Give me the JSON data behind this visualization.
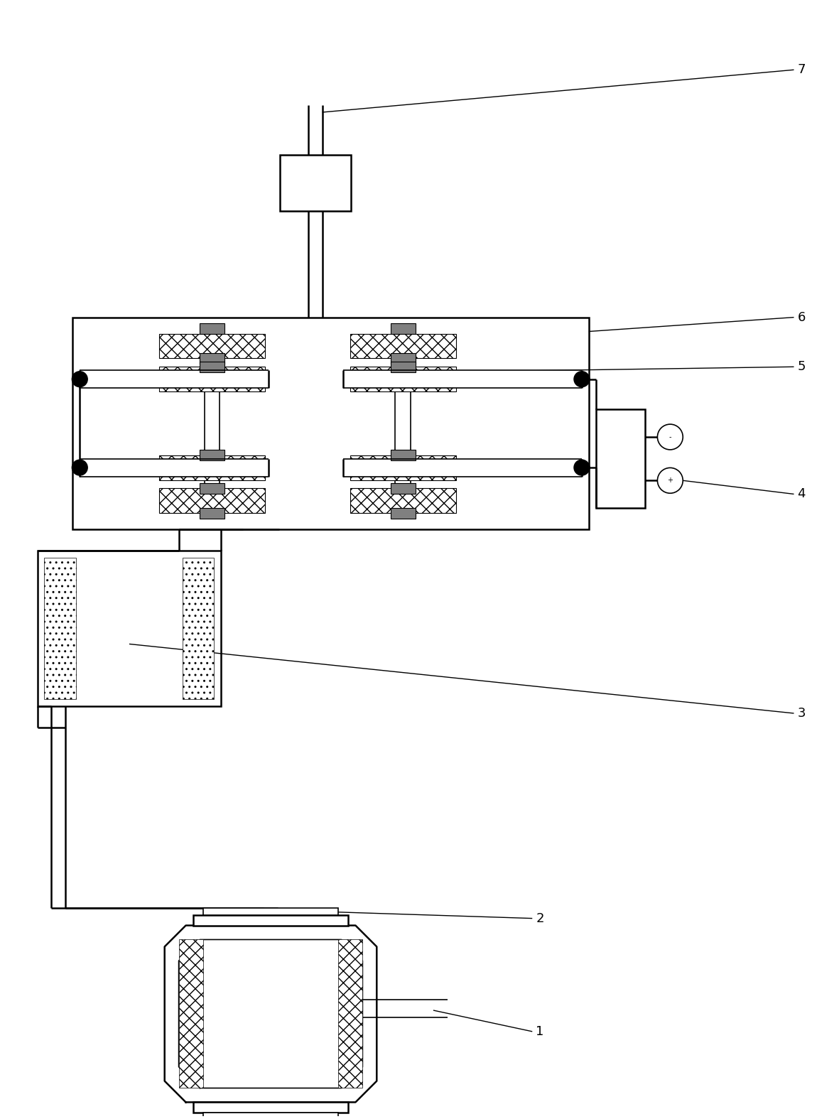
{
  "bg_color": "#ffffff",
  "line_color": "#000000",
  "label_fontsize": 13,
  "lw_main": 1.8,
  "lw_thin": 1.2,
  "lw_pipe": 4.0
}
